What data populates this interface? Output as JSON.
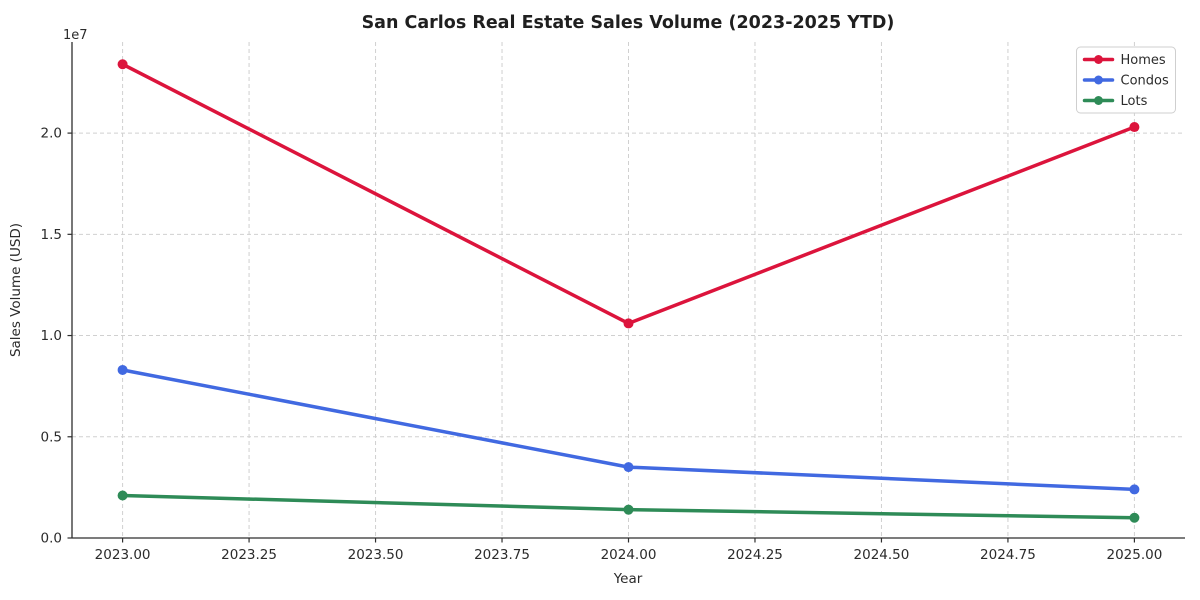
{
  "figure": {
    "background": "#ffffff"
  },
  "chart_data": {
    "type": "line",
    "title": "San Carlos Real Estate Sales Volume (2023-2025 YTD)",
    "xlabel": "Year",
    "ylabel": "Sales Volume (USD)",
    "y_offset_text": "1e7",
    "x": [
      2023,
      2024,
      2025
    ],
    "series": [
      {
        "name": "Homes",
        "color": "#DC143C",
        "values": [
          23400000,
          10600000,
          20300000
        ]
      },
      {
        "name": "Condos",
        "color": "#4169E1",
        "values": [
          8300000,
          3500000,
          2400000
        ]
      },
      {
        "name": "Lots",
        "color": "#2E8B57",
        "values": [
          2100000,
          1400000,
          1000000
        ]
      }
    ],
    "xticks": {
      "values": [
        2023.0,
        2023.25,
        2023.5,
        2023.75,
        2024.0,
        2024.25,
        2024.5,
        2024.75,
        2025.0
      ],
      "labels": [
        "2023.00",
        "2023.25",
        "2023.50",
        "2023.75",
        "2024.00",
        "2024.25",
        "2024.50",
        "2024.75",
        "2025.00"
      ]
    },
    "yticks": {
      "values": [
        0,
        5000000,
        10000000,
        15000000,
        20000000
      ],
      "labels": [
        "0.0",
        "0.5",
        "1.0",
        "1.5",
        "2.0"
      ]
    },
    "xlim": [
      2022.9,
      2025.1
    ],
    "ylim": [
      0,
      24500000
    ],
    "grid": true,
    "legend": {
      "position": "upper right",
      "entries": [
        "Homes",
        "Condos",
        "Lots"
      ]
    },
    "style": {
      "grid_color": "#d0d0d0",
      "axis_color": "#2e2e2e",
      "text_color": "#2b2b2b",
      "legend_border": "#cfcfcf",
      "line_width": 3.5,
      "marker_radius": 5
    }
  }
}
